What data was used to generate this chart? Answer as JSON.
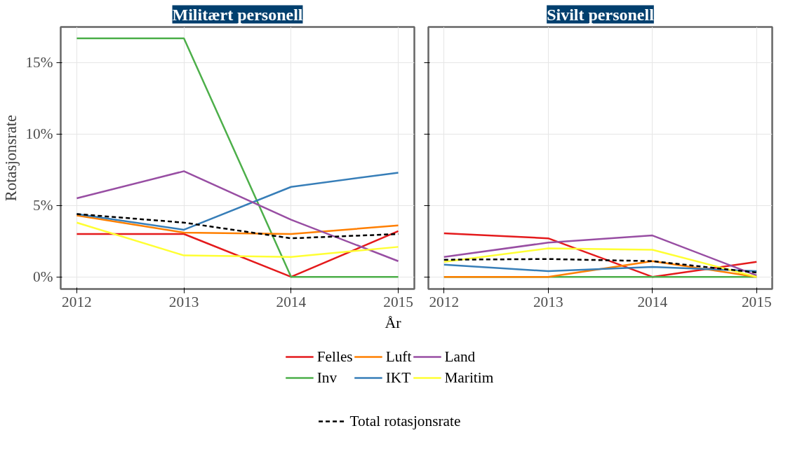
{
  "chart_data": [
    {
      "type": "line",
      "title": "Militært personell",
      "xlabel": "År",
      "ylabel": "Rotasjonsrate",
      "x": [
        2012,
        2013,
        2014,
        2015
      ],
      "xlim": [
        2011.85,
        2015.15
      ],
      "xticks": [
        2012,
        2013,
        2014,
        2015
      ],
      "ylim": [
        -0.85,
        17.5
      ],
      "yticks": [
        {
          "value": 0,
          "label": "0%"
        },
        {
          "value": 5,
          "label": "5%"
        },
        {
          "value": 10,
          "label": "10%"
        },
        {
          "value": 15,
          "label": "15%"
        }
      ],
      "grid": true,
      "legend": "bottom",
      "series": [
        {
          "name": "Felles",
          "color": "#e41a1c",
          "values": [
            3.0,
            3.0,
            0,
            3.2
          ]
        },
        {
          "name": "Inv",
          "color": "#4daf4a",
          "values": [
            16.7,
            16.7,
            0,
            0
          ]
        },
        {
          "name": "Luft",
          "color": "#ff7f00",
          "values": [
            4.3,
            3.1,
            3.0,
            3.6
          ]
        },
        {
          "name": "IKT",
          "color": "#377eb8",
          "values": [
            4.4,
            3.3,
            6.3,
            7.3
          ]
        },
        {
          "name": "Land",
          "color": "#984ea3",
          "values": [
            5.5,
            7.4,
            4.0,
            1.1
          ]
        },
        {
          "name": "Maritim",
          "color": "#ffff33",
          "values": [
            3.8,
            1.5,
            1.4,
            2.1
          ]
        },
        {
          "name": "Total rotasjonsrate",
          "color": "#000000",
          "line_style": "dashed",
          "values": [
            4.4,
            3.8,
            2.7,
            3.0
          ]
        }
      ]
    },
    {
      "type": "line",
      "title": "Sivilt personell",
      "x": [
        2012,
        2013,
        2014,
        2015
      ],
      "xlim": [
        2011.85,
        2015.15
      ],
      "xticks": [
        2012,
        2013,
        2014,
        2015
      ],
      "ylim": [
        -0.85,
        17.5
      ],
      "yticks": [
        0,
        5,
        10,
        15
      ],
      "tick_labels": "x",
      "grid": true,
      "series": [
        {
          "color": "#e41a1c",
          "values": [
            3.05,
            2.7,
            0,
            1.05
          ]
        },
        {
          "color": "#4daf4a",
          "values": [
            0,
            0,
            0,
            0
          ]
        },
        {
          "color": "#ff7f00",
          "values": [
            0,
            0,
            1.1,
            0
          ]
        },
        {
          "color": "#377eb8",
          "values": [
            0.85,
            0.4,
            0.7,
            0.4
          ]
        },
        {
          "color": "#984ea3",
          "values": [
            1.4,
            2.4,
            2.9,
            0.1
          ]
        },
        {
          "color": "#ffff33",
          "values": [
            1.05,
            2.0,
            1.9,
            0
          ]
        },
        {
          "color": "#000000",
          "line_style": "dashed",
          "values": [
            1.2,
            1.25,
            1.1,
            0.3
          ]
        }
      ]
    }
  ]
}
